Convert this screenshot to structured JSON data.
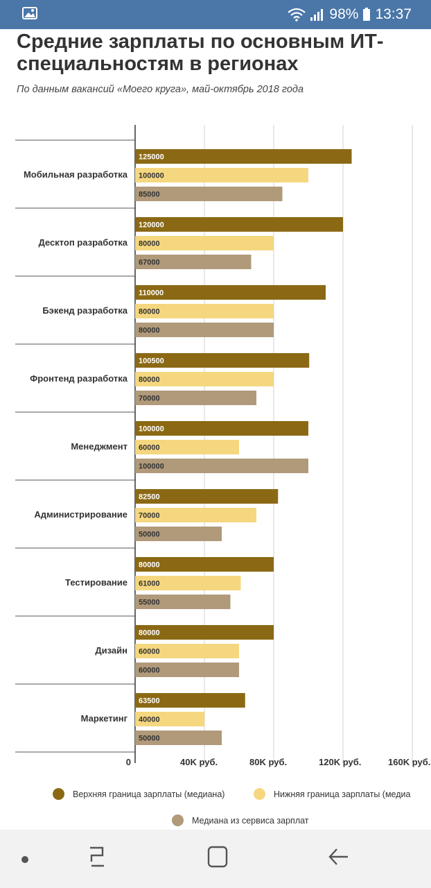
{
  "status_bar": {
    "battery": "98%",
    "time": "13:37",
    "icons": [
      "gallery-icon",
      "wifi-icon",
      "signal-icon",
      "battery-icon"
    ],
    "color": "#4a76a8"
  },
  "title": "Средние зарплаты по основным ИТ-специальностям в регионах",
  "subtitle": "По данным вакансий «Моего круга», май-октябрь 2018 года",
  "chart_data": {
    "type": "bar",
    "orientation": "horizontal",
    "categories": [
      "Мобильная разработка",
      "Десктоп разработка",
      "Бэкенд разработка",
      "Фронтенд разработка",
      "Менеджмент",
      "Администрирование",
      "Тестирование",
      "Дизайн",
      "Маркетинг"
    ],
    "series": [
      {
        "name": "Верхняя граница зарплаты (медиана)",
        "color": "#8b6914",
        "values": [
          125000,
          120000,
          110000,
          100500,
          100000,
          82500,
          80000,
          80000,
          63500
        ],
        "labels": [
          "125000",
          "120000",
          "110000",
          "100500",
          "100000",
          "82500",
          "80000",
          "80000",
          "63500"
        ]
      },
      {
        "name": "Нижняя граница зарплаты (медиа",
        "color": "#f5d77f",
        "values": [
          100000,
          80000,
          80000,
          80000,
          60000,
          70000,
          61000,
          60000,
          40000
        ],
        "labels": [
          "100000",
          "80000",
          "80000",
          "80000",
          "60000",
          "70000",
          "61000",
          "60000",
          "40000"
        ]
      },
      {
        "name": "Медиана из сервиса зарплат",
        "color": "#b09a7a",
        "values": [
          85000,
          67000,
          80000,
          70000,
          100000,
          50000,
          55000,
          60000,
          50000
        ],
        "labels": [
          "85000",
          "67000",
          "80000",
          "70000",
          "100000",
          "50000",
          "55000",
          "60000",
          "50000"
        ]
      }
    ],
    "xlim": [
      0,
      160000
    ],
    "xticks": [
      0,
      40000,
      80000,
      120000,
      160000
    ],
    "xtick_labels": [
      "0",
      "40K руб.",
      "80K руб.",
      "120K руб.",
      "160K руб."
    ],
    "grid": true,
    "legend_position": "bottom"
  },
  "navbar": {
    "icons": [
      "home-dot-icon",
      "recent-apps-icon",
      "home-icon",
      "back-icon"
    ]
  }
}
